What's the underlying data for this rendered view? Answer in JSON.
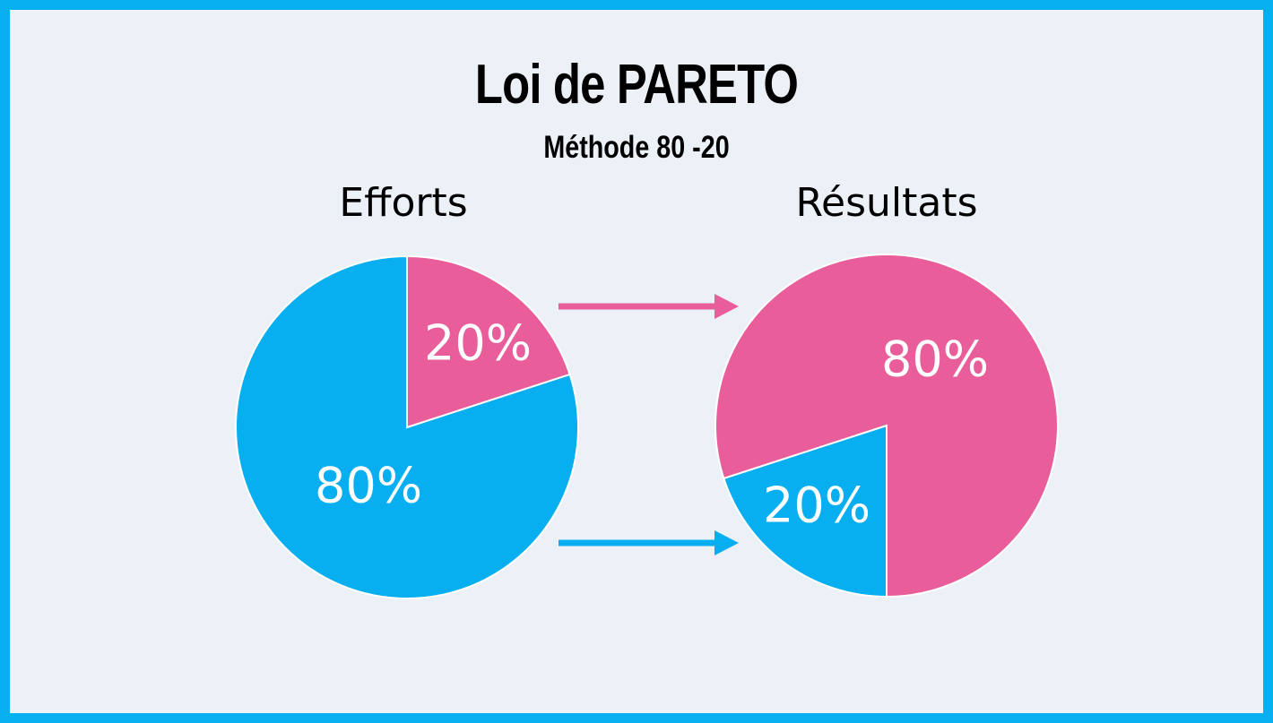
{
  "title": "Loi de PARETO",
  "subtitle": "Méthode 80 -20",
  "colors": {
    "pink": "#e95d9a",
    "blue": "#07aef0",
    "background": "#ecf1f8",
    "frame": "#07aef0"
  },
  "chart_data": [
    {
      "type": "pie",
      "title": "Efforts",
      "slices": [
        {
          "label": "20%",
          "value": 20,
          "color": "#e95d9a"
        },
        {
          "label": "80%",
          "value": 80,
          "color": "#07aef0"
        }
      ]
    },
    {
      "type": "pie",
      "title": "Résultats",
      "slices": [
        {
          "label": "80%",
          "value": 80,
          "color": "#e95d9a"
        },
        {
          "label": "20%",
          "value": 20,
          "color": "#07aef0"
        }
      ]
    }
  ]
}
